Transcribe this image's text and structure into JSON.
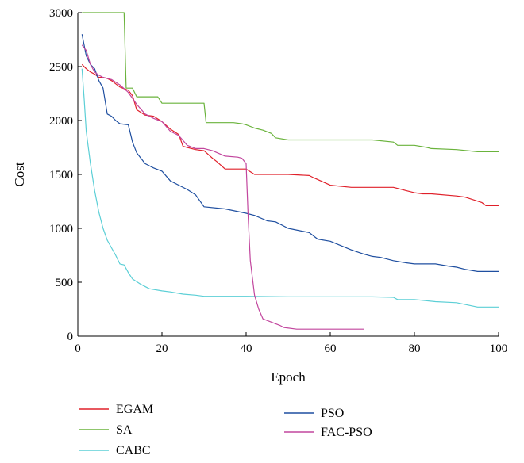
{
  "chart_data": {
    "type": "line",
    "xlabel": "Epoch",
    "ylabel": "Cost",
    "xlim": [
      0,
      100
    ],
    "ylim": [
      0,
      3000
    ],
    "xticks": [
      0,
      20,
      40,
      60,
      80,
      100
    ],
    "yticks": [
      0,
      500,
      1000,
      1500,
      2000,
      2500,
      3000
    ],
    "grid": false,
    "legend_position": "bottom",
    "series": [
      {
        "name": "EGAM",
        "color": "#e0202a",
        "x": [
          1,
          2,
          3,
          4,
          5,
          6,
          7,
          8,
          10,
          12,
          13,
          14,
          16,
          18,
          20,
          22,
          24,
          25,
          26,
          28,
          30,
          32,
          33,
          35,
          40,
          42,
          50,
          55,
          56,
          60,
          65,
          75,
          78,
          80,
          82,
          84,
          90,
          92,
          96,
          97,
          100
        ],
        "y": [
          2520,
          2480,
          2450,
          2430,
          2400,
          2400,
          2390,
          2370,
          2310,
          2280,
          2230,
          2100,
          2050,
          2040,
          1990,
          1920,
          1870,
          1760,
          1750,
          1730,
          1720,
          1650,
          1620,
          1550,
          1550,
          1500,
          1500,
          1490,
          1470,
          1400,
          1380,
          1380,
          1350,
          1330,
          1320,
          1320,
          1300,
          1290,
          1240,
          1210,
          1210
        ]
      },
      {
        "name": "SA",
        "color": "#6ab33c",
        "x": [
          1,
          11,
          11.5,
          13,
          14,
          19,
          20,
          30,
          30.5,
          37,
          39,
          40,
          42,
          44,
          46,
          47,
          50,
          55,
          70,
          75,
          76,
          80,
          83,
          84,
          90,
          95,
          100
        ],
        "y": [
          3000,
          3000,
          2300,
          2300,
          2220,
          2220,
          2160,
          2160,
          1980,
          1980,
          1970,
          1960,
          1930,
          1910,
          1880,
          1840,
          1820,
          1820,
          1820,
          1800,
          1770,
          1770,
          1750,
          1740,
          1730,
          1710,
          1710
        ]
      },
      {
        "name": "CABC",
        "color": "#5ccfd6",
        "x": [
          1,
          1.5,
          2,
          3,
          4,
          5,
          6,
          7,
          8,
          9,
          10,
          11,
          12,
          13,
          15,
          17,
          20,
          22,
          25,
          28,
          30,
          40,
          50,
          70,
          75,
          76,
          80,
          85,
          90,
          95,
          100
        ],
        "y": [
          2480,
          2200,
          1900,
          1600,
          1350,
          1150,
          1000,
          890,
          820,
          750,
          670,
          660,
          590,
          530,
          480,
          440,
          420,
          410,
          390,
          380,
          370,
          370,
          365,
          365,
          360,
          340,
          340,
          320,
          310,
          270,
          270
        ]
      },
      {
        "name": "PSO",
        "color": "#1f4fa0",
        "x": [
          1,
          2,
          3,
          4,
          5,
          6,
          7,
          8,
          9,
          10,
          12,
          13,
          14,
          15,
          16,
          18,
          20,
          22,
          24,
          26,
          28,
          30,
          35,
          40,
          42,
          45,
          47,
          50,
          55,
          57,
          60,
          65,
          68,
          70,
          72,
          75,
          78,
          80,
          85,
          88,
          90,
          92,
          95,
          100
        ],
        "y": [
          2800,
          2600,
          2520,
          2480,
          2370,
          2300,
          2060,
          2040,
          2000,
          1970,
          1960,
          1800,
          1700,
          1650,
          1600,
          1560,
          1530,
          1440,
          1400,
          1360,
          1310,
          1200,
          1180,
          1140,
          1120,
          1070,
          1060,
          1000,
          960,
          900,
          880,
          800,
          760,
          740,
          730,
          700,
          680,
          670,
          670,
          650,
          640,
          620,
          600,
          600
        ]
      },
      {
        "name": "FAC-PSO",
        "color": "#c2469e",
        "x": [
          1,
          2,
          3,
          4,
          5,
          6,
          8,
          10,
          12,
          14,
          16,
          18,
          20,
          22,
          24,
          26,
          28,
          30,
          32,
          35,
          38,
          39,
          40,
          40.5,
          41,
          42,
          43,
          44,
          46,
          48,
          49,
          52,
          55,
          60,
          65,
          68
        ],
        "y": [
          2700,
          2650,
          2520,
          2450,
          2420,
          2400,
          2380,
          2330,
          2260,
          2150,
          2060,
          2020,
          1990,
          1900,
          1860,
          1770,
          1740,
          1740,
          1720,
          1670,
          1660,
          1650,
          1600,
          1100,
          700,
          380,
          250,
          160,
          130,
          100,
          80,
          65,
          65,
          65,
          65,
          65
        ]
      }
    ]
  }
}
